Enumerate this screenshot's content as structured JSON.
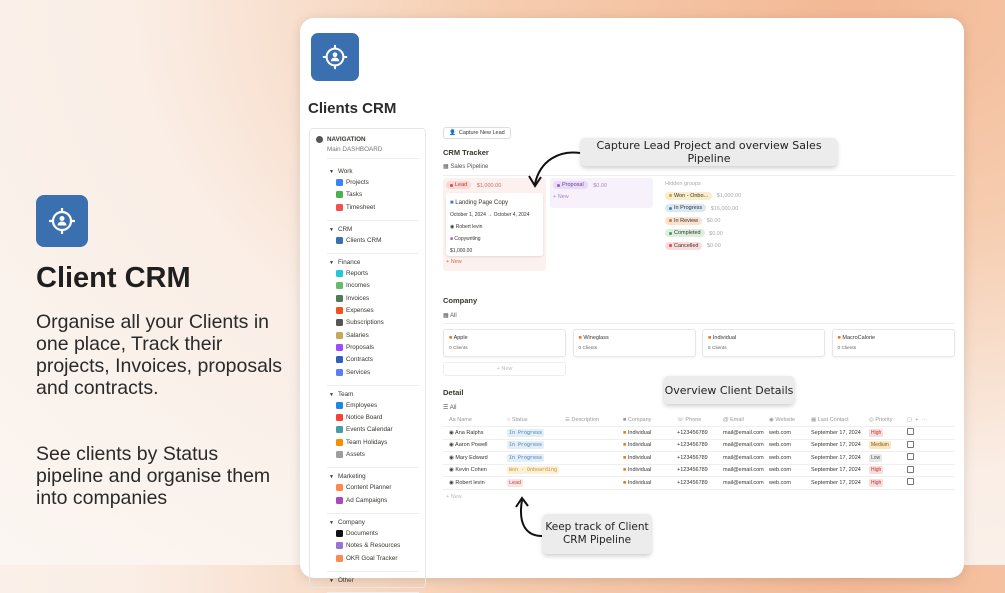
{
  "promo": {
    "title": "Client CRM",
    "paragraph1": "Organise all your Clients in one place, Track their projects, Invoices, proposals and contracts.",
    "paragraph2": "See clients by Status pipeline and organise them into companies",
    "icon": "crosshair-user-icon"
  },
  "page": {
    "title": "Clients CRM"
  },
  "sidebar": {
    "heading": "NAVIGATION",
    "subheading": "Main DASHBOARD",
    "groups": [
      {
        "label": "Work",
        "items": [
          {
            "label": "Projects",
            "color": "#3b82f6"
          },
          {
            "label": "Tasks",
            "color": "#4caf50"
          },
          {
            "label": "Timesheet",
            "color": "#ef5350"
          }
        ]
      },
      {
        "label": "CRM",
        "items": [
          {
            "label": "Clients CRM",
            "color": "#3a6fb0"
          }
        ]
      },
      {
        "label": "Finance",
        "items": [
          {
            "label": "Reports",
            "color": "#26c6da"
          },
          {
            "label": "Incomes",
            "color": "#66bb6a"
          },
          {
            "label": "Invoices",
            "color": "#4e7a55"
          },
          {
            "label": "Expenses",
            "color": "#f4511e"
          },
          {
            "label": "Subscriptions",
            "color": "#555555"
          },
          {
            "label": "Salaries",
            "color": "#c9a85c"
          },
          {
            "label": "Proposals",
            "color": "#9c4dff"
          },
          {
            "label": "Contracts",
            "color": "#2f5fbf"
          },
          {
            "label": "Services",
            "color": "#5c7cfa"
          }
        ]
      },
      {
        "label": "Team",
        "items": [
          {
            "label": "Employees",
            "color": "#1e88e5"
          },
          {
            "label": "Notice Board",
            "color": "#f44336"
          },
          {
            "label": "Events Calendar",
            "color": "#4a9aa5"
          },
          {
            "label": "Team Holidays",
            "color": "#fb8c00"
          },
          {
            "label": "Assets",
            "color": "#9e9e9e"
          }
        ]
      },
      {
        "label": "Marketing",
        "items": [
          {
            "label": "Content Planner",
            "color": "#ff8a50"
          },
          {
            "label": "Ad Campaigns",
            "color": "#ab47bc"
          }
        ]
      },
      {
        "label": "Company",
        "items": [
          {
            "label": "Documents",
            "color": "#111111"
          },
          {
            "label": "Notes & Resources",
            "color": "#9575cd"
          },
          {
            "label": "OKR Goal Tracker",
            "color": "#ff8a50"
          }
        ]
      },
      {
        "label": "Other",
        "items": []
      }
    ]
  },
  "main": {
    "capture_button": "Capture New Lead",
    "tracker": {
      "title": "CRM Tracker",
      "view": "Sales Pipeline",
      "lead": {
        "label": "Lead",
        "amount": "$1,000.00",
        "card": {
          "title": "Landing Page Copy",
          "dates": "October 1, 2024 → October 4, 2024",
          "person": "Robert levin",
          "tag": "Copywriting",
          "amount": "$1,000.00"
        },
        "new": "New"
      },
      "proposal": {
        "label": "Proposal",
        "amount": "$0.00",
        "new": "New"
      },
      "hidden_title": "Hidden groups",
      "hidden": [
        {
          "label": "Won - Onbo...",
          "amount": "$1,000.00",
          "bg": "#fbeccb",
          "dot": "#d9a23a"
        },
        {
          "label": "In Progress",
          "amount": "$16,000.00",
          "bg": "#d8e8f5",
          "dot": "#3a83c4"
        },
        {
          "label": "In Review",
          "amount": "$0.00",
          "bg": "#fbe1cf",
          "dot": "#d9772e"
        },
        {
          "label": "Completed",
          "amount": "$0.00",
          "bg": "#dcefdc",
          "dot": "#4a9a5a"
        },
        {
          "label": "Cancelled",
          "amount": "$0.00",
          "bg": "#fbdcdc",
          "dot": "#d94a4a"
        }
      ]
    },
    "company": {
      "title": "Company",
      "view": "All",
      "cards": [
        {
          "name": "Apple",
          "count": "0 Clients"
        },
        {
          "name": "Wineglass",
          "count": "0 Clients"
        },
        {
          "name": "Individual",
          "count": "5 Clients"
        },
        {
          "name": "MacroCalorie",
          "count": "0 Clients"
        }
      ],
      "new": "New"
    },
    "detail": {
      "title": "Detail",
      "view": "All",
      "columns": [
        "Name",
        "Status",
        "Description",
        "Company",
        "Phone",
        "Email",
        "Website",
        "Last Contact",
        "Priority"
      ],
      "rows": [
        {
          "name": "Ana Ralphs",
          "status": "In Progress",
          "company": "Individual",
          "phone": "+123456789",
          "email": "mail@email.com",
          "website": "web.com",
          "last": "September 17, 2024",
          "priority": "High"
        },
        {
          "name": "Aaron Powell",
          "status": "In Progress",
          "company": "Individual",
          "phone": "+123456789",
          "email": "mail@email.com",
          "website": "web.com",
          "last": "September 17, 2024",
          "priority": "Medium"
        },
        {
          "name": "Mary Edward",
          "status": "In Progress",
          "company": "Individual",
          "phone": "+123456789",
          "email": "mail@email.com",
          "website": "web.com",
          "last": "September 17, 2024",
          "priority": "Low"
        },
        {
          "name": "Kevin Cohen",
          "status": "Won - Onboarding",
          "company": "Individual",
          "phone": "+123456789",
          "email": "mail@email.com",
          "website": "web.com",
          "last": "September 17, 2024",
          "priority": "High"
        },
        {
          "name": "Robert levin",
          "status": "Lead",
          "company": "Individual",
          "phone": "+123456789",
          "email": "mail@email.com",
          "website": "web.com",
          "last": "September 17, 2024",
          "priority": "High"
        }
      ],
      "new": "New"
    }
  },
  "callouts": {
    "pipeline": "Capture Lead Project and overview Sales Pipeline",
    "details": "Overview Client Details",
    "track": "Keep track of Client CRM Pipeline"
  }
}
